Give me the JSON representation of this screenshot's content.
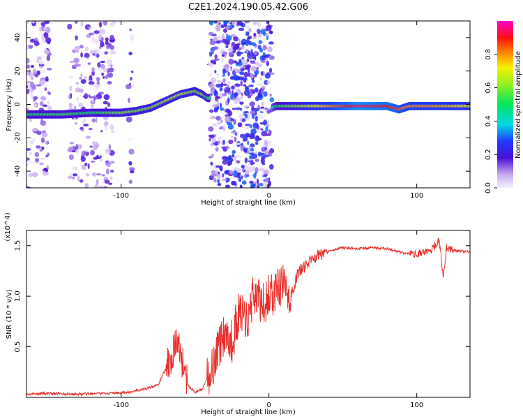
{
  "title": "C2E1.2024.190.05.42.G06",
  "chart_data": [
    {
      "type": "heatmap",
      "xlabel": "Height of straight line (km)",
      "ylabel": "Frequency (Hz)",
      "xlim": [
        -164,
        136
      ],
      "ylim": [
        -50,
        50
      ],
      "xticks": [
        -100,
        0,
        100
      ],
      "yticks": [
        -40,
        -20,
        0,
        20,
        40
      ],
      "xtick_labels": [
        "-100",
        "0",
        "100"
      ],
      "ytick_labels": [
        "-40",
        "-20",
        "0",
        "20",
        "40"
      ],
      "colorbar": {
        "label": "Normalized spectral amplitude",
        "range": [
          0,
          1
        ],
        "ticks": [
          0.0,
          0.2,
          0.4,
          0.6,
          0.8
        ],
        "tick_labels": [
          "0.0",
          "0.2",
          "0.4",
          "0.6",
          "0.8"
        ],
        "colormap": "rainbow (violet-blue-cyan-green-yellow-red-magenta)"
      },
      "ridge": {
        "x": [
          -164,
          -140,
          -120,
          -100,
          -90,
          -80,
          -70,
          -60,
          -50,
          -45,
          -42,
          2,
          5,
          10,
          30,
          60,
          80,
          88,
          95,
          110,
          136
        ],
        "y": [
          -6,
          -6,
          -5,
          -5,
          -4,
          -2,
          2,
          6,
          8,
          6,
          4,
          -2,
          -1,
          -1,
          -1,
          -1,
          -1,
          -3,
          -1,
          -1,
          -1
        ],
        "amplitude": [
          0.5,
          0.55,
          0.5,
          0.6,
          0.6,
          0.6,
          0.65,
          0.65,
          0.6,
          0.6,
          0.5,
          0.4,
          0.5,
          0.55,
          0.7,
          0.95,
          0.9,
          0.85,
          0.8,
          0.8,
          0.7
        ]
      },
      "grid": false
    },
    {
      "type": "line",
      "xlabel": "Height of straight line (km)",
      "ylabel": "SNR (10 * v/v)",
      "y_multiplier": "(x10^4)",
      "xlim": [
        -164,
        136
      ],
      "ylim": [
        0.0,
        1.65
      ],
      "xticks": [
        -100,
        0,
        100
      ],
      "yticks": [
        0.5,
        1.0,
        1.5
      ],
      "xtick_labels": [
        "-100",
        "0",
        "100"
      ],
      "ytick_labels": [
        "0.5",
        "1.0",
        "1.5"
      ],
      "color": "#e8302c",
      "series": [
        {
          "x": [
            -164,
            -150,
            -130,
            -110,
            -95,
            -85,
            -75,
            -68,
            -62,
            -60,
            -55,
            -50,
            -45,
            -40,
            -35,
            -30,
            -25,
            -20,
            -15,
            -10,
            -5,
            0,
            5,
            10,
            15,
            20,
            25,
            30,
            40,
            50,
            60,
            70,
            80,
            90,
            100,
            110,
            115,
            118,
            120,
            125,
            136
          ],
          "y": [
            0.03,
            0.04,
            0.03,
            0.04,
            0.05,
            0.08,
            0.12,
            0.35,
            0.55,
            0.45,
            0.12,
            0.05,
            0.08,
            0.25,
            0.45,
            0.65,
            0.55,
            0.85,
            0.75,
            1.05,
            0.9,
            1.0,
            1.05,
            1.1,
            1.0,
            1.25,
            1.3,
            1.38,
            1.45,
            1.48,
            1.47,
            1.48,
            1.47,
            1.43,
            1.42,
            1.46,
            1.55,
            1.2,
            1.48,
            1.45,
            1.44
          ]
        }
      ],
      "grid": false
    }
  ]
}
